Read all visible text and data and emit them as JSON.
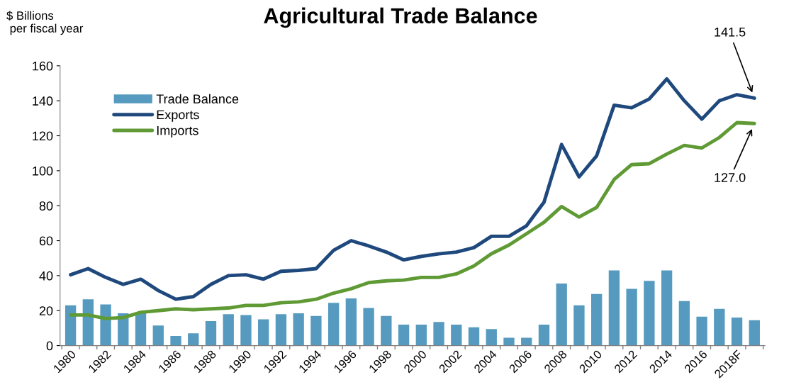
{
  "chart_data": {
    "type": "bar",
    "title": "Agricultural Trade Balance",
    "ylabel": "$ Billions\n per fiscal year",
    "categories": [
      "1980",
      null,
      "1982",
      null,
      "1984",
      null,
      "1986",
      null,
      "1988",
      null,
      "1990",
      null,
      "1992",
      null,
      "1994",
      null,
      "1996",
      null,
      "1998",
      null,
      "2000",
      null,
      "2002",
      null,
      "2004",
      null,
      "2006",
      null,
      "2008",
      null,
      "2010",
      null,
      "2012",
      null,
      "2014",
      null,
      "2016",
      null,
      "2018F",
      null
    ],
    "series": [
      {
        "name": "Trade Balance",
        "color": "#569bbf",
        "values": [
          23,
          26.5,
          23.5,
          18.5,
          18.5,
          11.5,
          5.5,
          7,
          14,
          18,
          17.5,
          15,
          18,
          18.5,
          17,
          24.5,
          27,
          21.5,
          17,
          12,
          12,
          13.5,
          12,
          10.5,
          9.5,
          4.5,
          4.5,
          12,
          35.5,
          23,
          29.5,
          43,
          32.5,
          37,
          43,
          25.5,
          16.5,
          21,
          16,
          14.5
        ]
      },
      {
        "name": "Exports",
        "type": "line",
        "color": "#1f497d",
        "values": [
          40.5,
          44,
          39,
          35,
          38,
          31.5,
          26.5,
          28,
          35,
          40,
          40.5,
          38,
          42.5,
          43,
          44,
          54.5,
          60,
          57,
          53.5,
          49,
          51,
          52.5,
          53.5,
          56,
          62.5,
          62.5,
          68.5,
          82,
          115,
          96.5,
          108.5,
          137.5,
          136,
          141,
          152.5,
          140,
          129.5,
          140,
          143.5,
          141.5
        ]
      },
      {
        "name": "Imports",
        "type": "line",
        "color": "#5f9a35",
        "values": [
          17.5,
          17.5,
          15.5,
          16,
          19,
          20,
          21,
          20.5,
          21,
          21.5,
          23,
          23,
          24.5,
          25,
          26.5,
          30,
          32.5,
          36,
          37,
          37.5,
          39,
          39,
          41,
          45.5,
          52.5,
          57.5,
          64,
          70.5,
          79.5,
          73.5,
          79,
          95,
          103.5,
          104,
          109.5,
          114.5,
          113,
          119,
          127.5,
          127
        ]
      }
    ],
    "ylim": [
      0,
      160
    ],
    "yticks": [
      0,
      20,
      40,
      60,
      80,
      100,
      120,
      140,
      160
    ],
    "annotations": [
      "141.5",
      "127.0"
    ],
    "legend": "top left",
    "grid": false,
    "marker": "none",
    "line_style": "solid"
  }
}
